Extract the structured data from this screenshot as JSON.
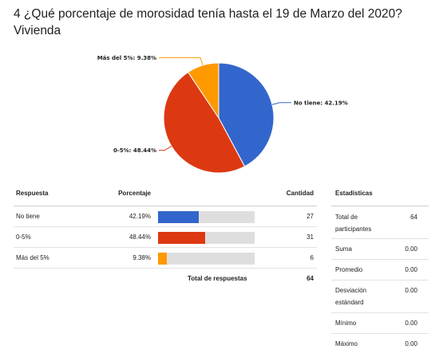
{
  "title_line1": "4 ¿Qué porcentaje de morosidad tenía hasta el 19 de Marzo del 2020?",
  "title_line2": "Vivienda",
  "chart_data": {
    "type": "pie",
    "slices": [
      {
        "label": "No tiene",
        "value": 42.19,
        "display": "No tiene: 42.19%",
        "color": "#3366cc"
      },
      {
        "label": "0-5%",
        "value": 48.44,
        "display": "0-5%: 48.44%",
        "color": "#dc3912"
      },
      {
        "label": "Más del 5%",
        "value": 9.38,
        "display": "Más del 5%: 9.38%",
        "color": "#ff9900"
      }
    ]
  },
  "table": {
    "headers": {
      "respuesta": "Respuesta",
      "porcentaje": "Porcentaje",
      "cantidad": "Cantidad"
    },
    "rows": [
      {
        "respuesta": "No tiene",
        "porcentaje": "42.19%",
        "cantidad": "27",
        "value": 42.19,
        "color": "#3366cc"
      },
      {
        "respuesta": "0-5%",
        "porcentaje": "48.44%",
        "cantidad": "31",
        "value": 48.44,
        "color": "#dc3912"
      },
      {
        "respuesta": "Más del 5%",
        "porcentaje": "9.38%",
        "cantidad": "6",
        "value": 9.38,
        "color": "#ff9900"
      }
    ],
    "total_label": "Total de respuestas",
    "total_value": "64"
  },
  "stats": {
    "header": "Estadísticas",
    "rows": [
      {
        "label": "Total de participantes",
        "value": "64"
      },
      {
        "label": "Suma",
        "value": "0.00"
      },
      {
        "label": "Promedio",
        "value": "0.00"
      },
      {
        "label": "Desviación estándard",
        "value": "0.00"
      },
      {
        "label": "Mínimo",
        "value": "0.00"
      },
      {
        "label": "Máximo",
        "value": "0.00"
      }
    ]
  }
}
